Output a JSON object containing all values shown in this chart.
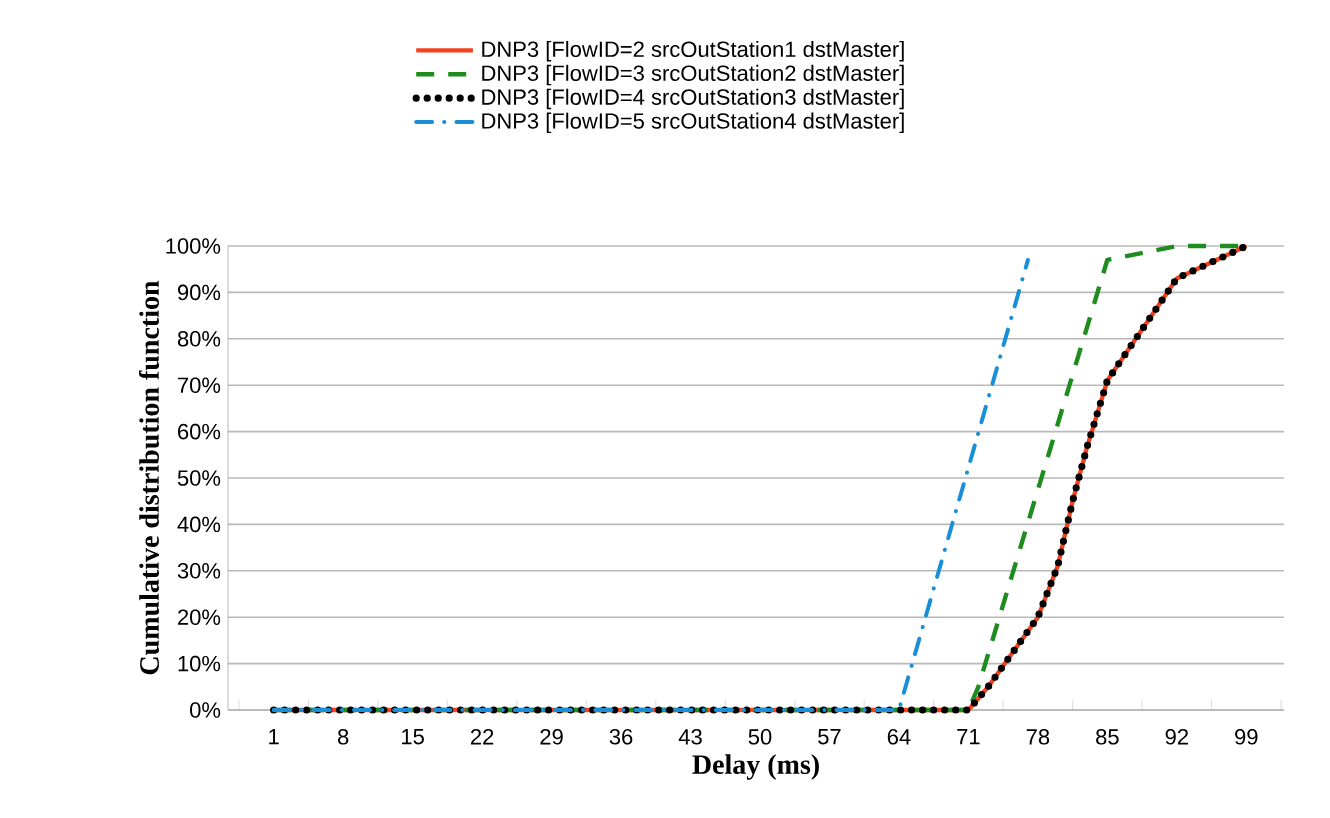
{
  "chart_data": {
    "type": "line",
    "xlabel": "Delay (ms)",
    "ylabel": "Cumulative distribution function",
    "xlim": [
      -3.6,
      102.8
    ],
    "xticks": [
      1,
      8,
      15,
      22,
      29,
      36,
      43,
      50,
      57,
      64,
      71,
      78,
      85,
      92,
      99
    ],
    "ylim": [
      0,
      100
    ],
    "yticks": [
      {
        "value": 0,
        "label": "0%"
      },
      {
        "value": 10,
        "label": "10%"
      },
      {
        "value": 20,
        "label": "20%"
      },
      {
        "value": 30,
        "label": "30%"
      },
      {
        "value": 40,
        "label": "40%"
      },
      {
        "value": 50,
        "label": "50%"
      },
      {
        "value": 60,
        "label": "60%"
      },
      {
        "value": 70,
        "label": "70%"
      },
      {
        "value": 80,
        "label": "80%"
      },
      {
        "value": 90,
        "label": "90%"
      },
      {
        "value": 100,
        "label": "100%"
      }
    ],
    "grid": "y",
    "legend": "top",
    "series": [
      {
        "name": "DNP3 [FlowID=2 srcOutStation1 dstMaster]",
        "color": "#f5421e",
        "line_style": "solid",
        "x": [
          1,
          71,
          73,
          78,
          80,
          81.5,
          83,
          85,
          92,
          99
        ],
        "values": [
          0,
          0,
          5,
          20,
          31,
          45,
          57,
          71,
          93,
          100
        ]
      },
      {
        "name": "DNP3 [FlowID=3 srcOutStation2 dstMaster]",
        "color": "#1e8c1e",
        "line_style": "dashed",
        "x": [
          1,
          71,
          72,
          85,
          92,
          99
        ],
        "values": [
          0,
          0,
          5,
          97,
          100,
          100
        ]
      },
      {
        "name": "DNP3 [FlowID=4 srcOutStation3 dstMaster]",
        "color": "#000000",
        "line_style": "dotted",
        "x": [
          1,
          71,
          73,
          78,
          80,
          81.5,
          83,
          85,
          92,
          99
        ],
        "values": [
          0,
          0,
          5,
          20,
          31,
          45,
          57,
          71,
          93,
          100
        ]
      },
      {
        "name": "DNP3 [FlowID=5 srcOutStation4 dstMaster]",
        "color": "#1a8fd6",
        "line_style": "dashdot",
        "x": [
          1,
          64,
          77
        ],
        "values": [
          0,
          0,
          97
        ]
      }
    ]
  }
}
